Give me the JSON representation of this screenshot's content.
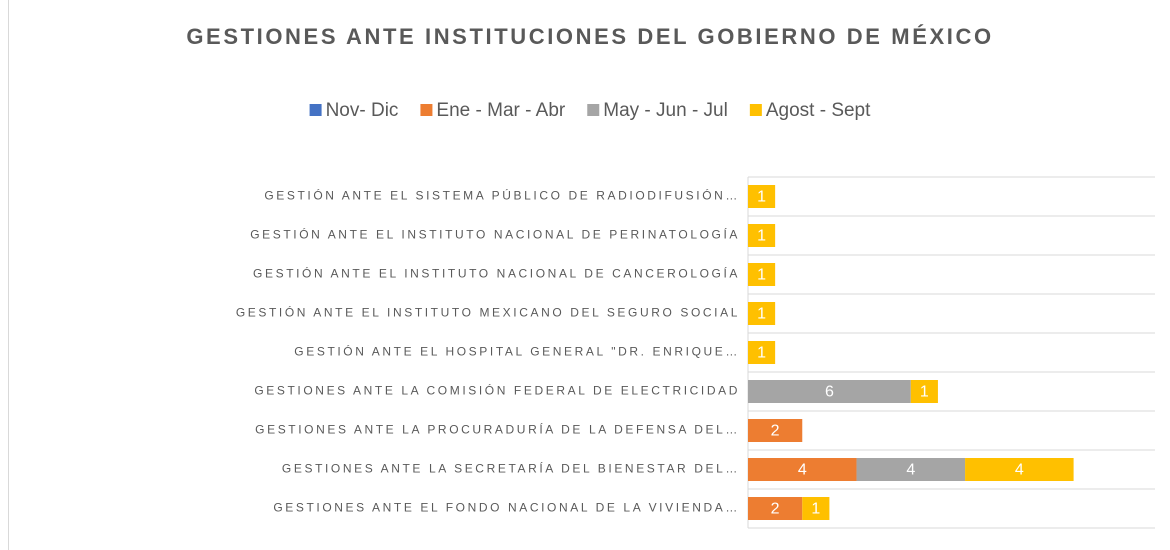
{
  "chart_data": {
    "type": "stacked_hbar",
    "title": "GESTIONES ANTE INSTITUCIONES DEL GOBIERNO DE MÉXICO",
    "categories": [
      "GESTIÓN ANTE EL SISTEMA PÚBLICO DE RADIODIFUSIÓN…",
      "GESTIÓN ANTE EL INSTITUTO NACIONAL DE PERINATOLOGÍA",
      "GESTIÓN ANTE EL INSTITUTO NACIONAL DE CANCEROLOGÍA",
      "GESTIÓN ANTE EL INSTITUTO MEXICANO DEL SEGURO SOCIAL",
      "GESTIÓN ANTE EL HOSPITAL GENERAL \"DR. ENRIQUE…",
      "GESTIONES ANTE LA COMISIÓN FEDERAL DE ELECTRICIDAD",
      "GESTIONES ANTE LA PROCURADURÍA DE LA DEFENSA DEL…",
      "GESTIONES ANTE LA SECRETARÍA DEL BIENESTAR DEL…",
      "GESTIONES ANTE EL FONDO NACIONAL DE LA VIVIENDA…"
    ],
    "series": [
      {
        "name": "Nov- Dic",
        "color": "#4472c4",
        "values": [
          null,
          null,
          null,
          null,
          null,
          null,
          null,
          null,
          null
        ]
      },
      {
        "name": "Ene - Mar - Abr",
        "color": "#ed7d31",
        "values": [
          null,
          null,
          null,
          null,
          null,
          null,
          2,
          4,
          2
        ]
      },
      {
        "name": "May - Jun - Jul",
        "color": "#a5a5a5",
        "values": [
          null,
          null,
          null,
          null,
          null,
          6,
          null,
          4,
          null
        ]
      },
      {
        "name": "Agost - Sept",
        "color": "#ffc000",
        "values": [
          1,
          1,
          1,
          1,
          1,
          1,
          null,
          4,
          1
        ]
      }
    ],
    "xlim": [
      0,
      15
    ],
    "grid": true,
    "legend": "top"
  }
}
